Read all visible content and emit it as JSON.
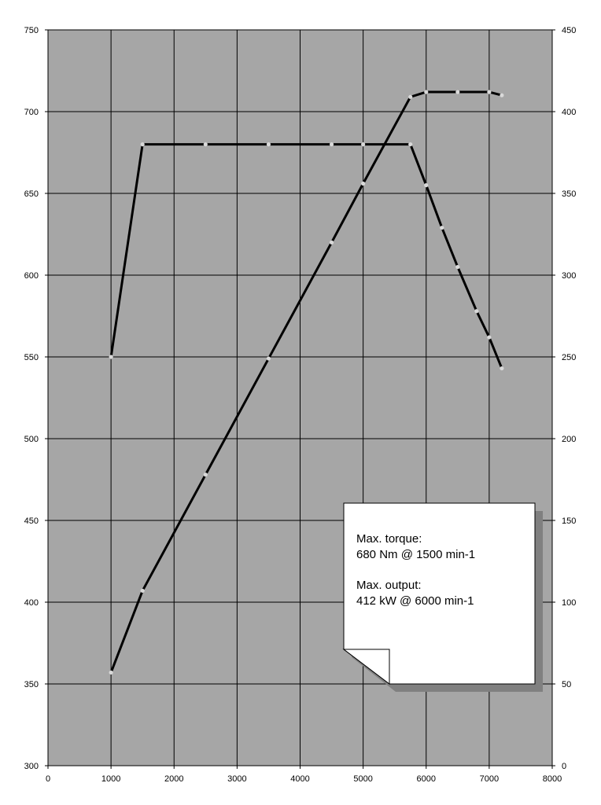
{
  "chart_data": {
    "type": "line",
    "title": "",
    "xlabel": "",
    "ylabel": "",
    "y2label": "",
    "xlim": [
      0,
      8000
    ],
    "ylim": [
      300,
      750
    ],
    "y2lim": [
      0,
      450
    ],
    "x_ticks": [
      0,
      1000,
      2000,
      3000,
      4000,
      5000,
      6000,
      7000,
      8000
    ],
    "y_ticks": [
      300,
      350,
      400,
      450,
      500,
      550,
      600,
      650,
      700,
      750
    ],
    "y2_ticks": [
      0,
      50,
      100,
      150,
      200,
      250,
      300,
      350,
      400,
      450
    ],
    "grid": true,
    "colors": {
      "plot_bg": "#a6a6a6",
      "grid": "#000000",
      "line": "#000000",
      "marker": "#d9d9d9",
      "note_bg": "#ffffff",
      "note_shadow": "#808080"
    },
    "series": [
      {
        "axis": "left",
        "x": [
          1000,
          1500,
          2500,
          3500,
          4500,
          5000,
          5750,
          6000,
          6250,
          6500,
          6800,
          7000,
          7200
        ],
        "y": [
          550,
          680,
          680,
          680,
          680,
          680,
          680,
          655,
          629,
          605,
          578,
          562,
          543
        ]
      },
      {
        "axis": "right",
        "x": [
          1000,
          1500,
          2500,
          3500,
          4500,
          5000,
          5750,
          6000,
          6500,
          7000,
          7200
        ],
        "y": [
          57,
          107,
          178,
          249,
          320,
          356,
          409,
          412,
          412,
          412,
          410
        ]
      }
    ],
    "annotation": {
      "line1": "Max. torque:",
      "line2": "680 Nm @ 1500 min-1",
      "line3": "Max. output:",
      "line4": "412 kW @ 6000 min-1"
    }
  }
}
